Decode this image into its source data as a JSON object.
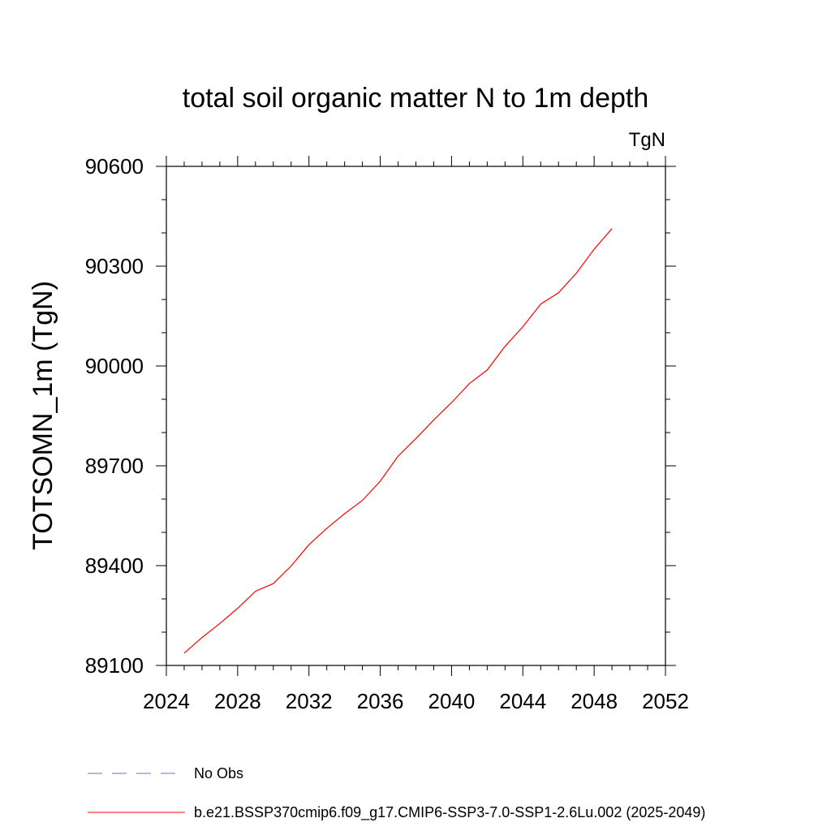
{
  "chart_data": {
    "type": "line",
    "title": "total soil organic matter N to 1m depth",
    "units_label": "TgN",
    "xlabel": "",
    "ylabel": "TOTSOMN_1m  (TgN)",
    "xlim": [
      2024,
      2052
    ],
    "ylim": [
      89100,
      90600
    ],
    "x_ticks": [
      "2024",
      "2028",
      "2032",
      "2036",
      "2040",
      "2044",
      "2048",
      "2052"
    ],
    "y_ticks": [
      "89100",
      "89400",
      "89700",
      "90000",
      "90300",
      "90600"
    ],
    "grid": false,
    "legend_position": "bottom",
    "series": [
      {
        "name": "b.e21.BSSP370cmip6.f09_g17.CMIP6-SSP3-7.0-SSP1-2.6Lu.002 (2025-2049)",
        "color": "#ff0000",
        "style": "solid",
        "x": [
          2025,
          2026,
          2027,
          2028,
          2029,
          2030,
          2031,
          2032,
          2033,
          2034,
          2035,
          2036,
          2037,
          2038,
          2039,
          2040,
          2041,
          2042,
          2043,
          2044,
          2045,
          2046,
          2047,
          2048,
          2049
        ],
        "y": [
          89137,
          89184,
          89226,
          89272,
          89323,
          89346,
          89399,
          89463,
          89512,
          89556,
          89596,
          89654,
          89729,
          89782,
          89838,
          89890,
          89947,
          89988,
          90059,
          90118,
          90186,
          90220,
          90279,
          90351,
          90413
        ]
      },
      {
        "name": "No Obs",
        "color": "#7b68c8",
        "style": "dashed",
        "x": [],
        "y": []
      }
    ]
  }
}
